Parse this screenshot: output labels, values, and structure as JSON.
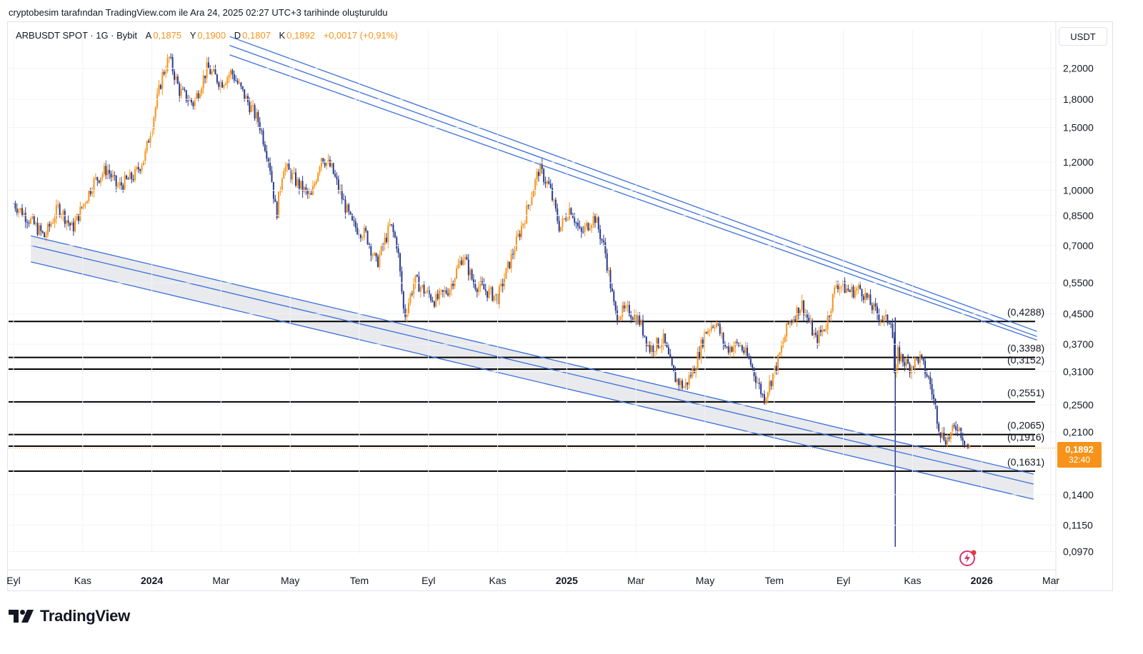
{
  "header": {
    "credit": "cryptobesim tarafından TradingView.com ile Ara 24, 2025 02:27 UTC+3 tarihinde oluşturuldu"
  },
  "legend": {
    "symbol": "ARBUSDT SPOT · 1G · Bybit",
    "open_label": "A",
    "open": "0,1875",
    "high_label": "Y",
    "high": "0,1900",
    "low_label": "D",
    "low": "0,1807",
    "close_label": "K",
    "close": "0,1892",
    "change": "+0,0017 (+0,91%)"
  },
  "currency": "USDT",
  "price_badge": {
    "price": "0,1892",
    "countdown": "32:40"
  },
  "footer": {
    "brand": "TradingView"
  },
  "colors": {
    "up": "#f7931a",
    "down": "#2a3a8c",
    "channel": "#3a6fd8",
    "level": "#000000",
    "accent": "#f7931a"
  },
  "chart_data": {
    "type": "candlestick",
    "title": "ARBUSDT SPOT · 1G · Bybit",
    "ylabel": "USDT",
    "y_scale": "log",
    "ylim": [
      0.088,
      2.55
    ],
    "y_ticks": [
      {
        "value": 2.2,
        "label": "2,2000"
      },
      {
        "value": 1.8,
        "label": "1,8000"
      },
      {
        "value": 1.5,
        "label": "1,5000"
      },
      {
        "value": 1.2,
        "label": "1,2000"
      },
      {
        "value": 1.0,
        "label": "1,0000"
      },
      {
        "value": 0.85,
        "label": "0,8500"
      },
      {
        "value": 0.7,
        "label": "0,7000"
      },
      {
        "value": 0.55,
        "label": "0,5500"
      },
      {
        "value": 0.45,
        "label": "0,4500"
      },
      {
        "value": 0.37,
        "label": "0,3700"
      },
      {
        "value": 0.31,
        "label": "0,3100"
      },
      {
        "value": 0.25,
        "label": "0,2500"
      },
      {
        "value": 0.21,
        "label": "0,2100"
      },
      {
        "value": 0.14,
        "label": "0,1400"
      },
      {
        "value": 0.115,
        "label": "0,1150"
      },
      {
        "value": 0.097,
        "label": "0,0970"
      }
    ],
    "x_ticks": [
      {
        "t": 0,
        "label": "Eyl",
        "bold": false
      },
      {
        "t": 2,
        "label": "Kas",
        "bold": false
      },
      {
        "t": 4,
        "label": "2024",
        "bold": true
      },
      {
        "t": 6,
        "label": "Mar",
        "bold": false
      },
      {
        "t": 8,
        "label": "May",
        "bold": false
      },
      {
        "t": 10,
        "label": "Tem",
        "bold": false
      },
      {
        "t": 12,
        "label": "Eyl",
        "bold": false
      },
      {
        "t": 14,
        "label": "Kas",
        "bold": false
      },
      {
        "t": 16,
        "label": "2025",
        "bold": true
      },
      {
        "t": 18,
        "label": "Mar",
        "bold": false
      },
      {
        "t": 20,
        "label": "May",
        "bold": false
      },
      {
        "t": 22,
        "label": "Tem",
        "bold": false
      },
      {
        "t": 24,
        "label": "Eyl",
        "bold": false
      },
      {
        "t": 26,
        "label": "Kas",
        "bold": false
      },
      {
        "t": 28,
        "label": "2026",
        "bold": true
      },
      {
        "t": 30,
        "label": "Mar",
        "bold": false
      }
    ],
    "x_range": [
      0,
      30
    ],
    "price_path": [
      [
        0.0,
        0.92
      ],
      [
        0.5,
        0.82
      ],
      [
        0.9,
        0.74
      ],
      [
        1.3,
        0.9
      ],
      [
        1.7,
        0.78
      ],
      [
        2.3,
        1.05
      ],
      [
        2.7,
        1.15
      ],
      [
        3.0,
        1.02
      ],
      [
        3.5,
        1.1
      ],
      [
        3.8,
        1.25
      ],
      [
        4.1,
        1.7
      ],
      [
        4.3,
        2.1
      ],
      [
        4.5,
        2.35
      ],
      [
        4.8,
        1.9
      ],
      [
        5.2,
        1.75
      ],
      [
        5.6,
        2.2
      ],
      [
        6.0,
        2.0
      ],
      [
        6.3,
        2.15
      ],
      [
        6.6,
        1.9
      ],
      [
        7.1,
        1.55
      ],
      [
        7.4,
        1.2
      ],
      [
        7.6,
        0.85
      ],
      [
        7.8,
        1.18
      ],
      [
        8.2,
        1.05
      ],
      [
        8.6,
        0.95
      ],
      [
        8.9,
        1.25
      ],
      [
        9.2,
        1.15
      ],
      [
        9.5,
        0.95
      ],
      [
        9.8,
        0.8
      ],
      [
        10.2,
        0.75
      ],
      [
        10.5,
        0.62
      ],
      [
        10.9,
        0.8
      ],
      [
        11.1,
        0.7
      ],
      [
        11.3,
        0.44
      ],
      [
        11.6,
        0.56
      ],
      [
        11.9,
        0.52
      ],
      [
        12.2,
        0.49
      ],
      [
        12.6,
        0.53
      ],
      [
        13.0,
        0.66
      ],
      [
        13.3,
        0.55
      ],
      [
        13.7,
        0.52
      ],
      [
        14.0,
        0.5
      ],
      [
        14.4,
        0.65
      ],
      [
        14.8,
        0.85
      ],
      [
        15.2,
        1.15
      ],
      [
        15.5,
        1.02
      ],
      [
        15.8,
        0.78
      ],
      [
        16.1,
        0.9
      ],
      [
        16.4,
        0.75
      ],
      [
        16.8,
        0.85
      ],
      [
        17.1,
        0.68
      ],
      [
        17.4,
        0.45
      ],
      [
        17.8,
        0.46
      ],
      [
        18.1,
        0.43
      ],
      [
        18.4,
        0.36
      ],
      [
        18.8,
        0.38
      ],
      [
        19.1,
        0.3
      ],
      [
        19.4,
        0.28
      ],
      [
        19.7,
        0.32
      ],
      [
        20.0,
        0.4
      ],
      [
        20.3,
        0.43
      ],
      [
        20.6,
        0.36
      ],
      [
        21.0,
        0.37
      ],
      [
        21.3,
        0.33
      ],
      [
        21.7,
        0.26
      ],
      [
        22.1,
        0.33
      ],
      [
        22.4,
        0.42
      ],
      [
        22.8,
        0.48
      ],
      [
        23.2,
        0.38
      ],
      [
        23.5,
        0.42
      ],
      [
        23.8,
        0.55
      ],
      [
        24.2,
        0.52
      ],
      [
        24.5,
        0.53
      ],
      [
        24.9,
        0.46
      ],
      [
        25.2,
        0.43
      ],
      [
        25.4,
        0.44
      ],
      [
        25.5,
        0.27
      ],
      [
        25.55,
        0.35
      ],
      [
        25.9,
        0.32
      ],
      [
        26.2,
        0.34
      ],
      [
        26.5,
        0.29
      ],
      [
        26.8,
        0.21
      ],
      [
        27.0,
        0.2
      ],
      [
        27.3,
        0.22
      ],
      [
        27.6,
        0.19
      ],
      [
        27.7,
        0.1892
      ]
    ],
    "wicks": [
      {
        "t": 25.5,
        "high": 0.44,
        "low": 0.1,
        "note": "flash crash wick"
      }
    ],
    "horizontal_levels": [
      {
        "value": 0.4288,
        "label": "(0,4288)"
      },
      {
        "value": 0.3398,
        "label": "(0,3398)"
      },
      {
        "value": 0.3152,
        "label": "(0,3152)"
      },
      {
        "value": 0.2551,
        "label": "(0,2551)"
      },
      {
        "value": 0.2065,
        "label": "(0,2065)"
      },
      {
        "value": 0.1916,
        "label": "(0,1916)"
      },
      {
        "value": 0.1631,
        "label": "(0,1631)"
      }
    ],
    "last_price": 0.1892,
    "trendlines": {
      "upper_channel": [
        {
          "t1": 6.25,
          "v1": 2.7,
          "t2": 29.6,
          "v2": 0.402
        },
        {
          "t1": 6.25,
          "v1": 2.55,
          "t2": 29.6,
          "v2": 0.389
        },
        {
          "t1": 6.25,
          "v1": 2.4,
          "t2": 29.6,
          "v2": 0.38
        }
      ],
      "lower_channel": [
        {
          "t1": 0.5,
          "v1": 0.745,
          "t2": 29.5,
          "v2": 0.16
        },
        {
          "t1": 0.5,
          "v1": 0.7,
          "t2": 29.5,
          "v2": 0.15
        },
        {
          "t1": 0.5,
          "v1": 0.63,
          "t2": 29.5,
          "v2": 0.136
        }
      ]
    }
  }
}
